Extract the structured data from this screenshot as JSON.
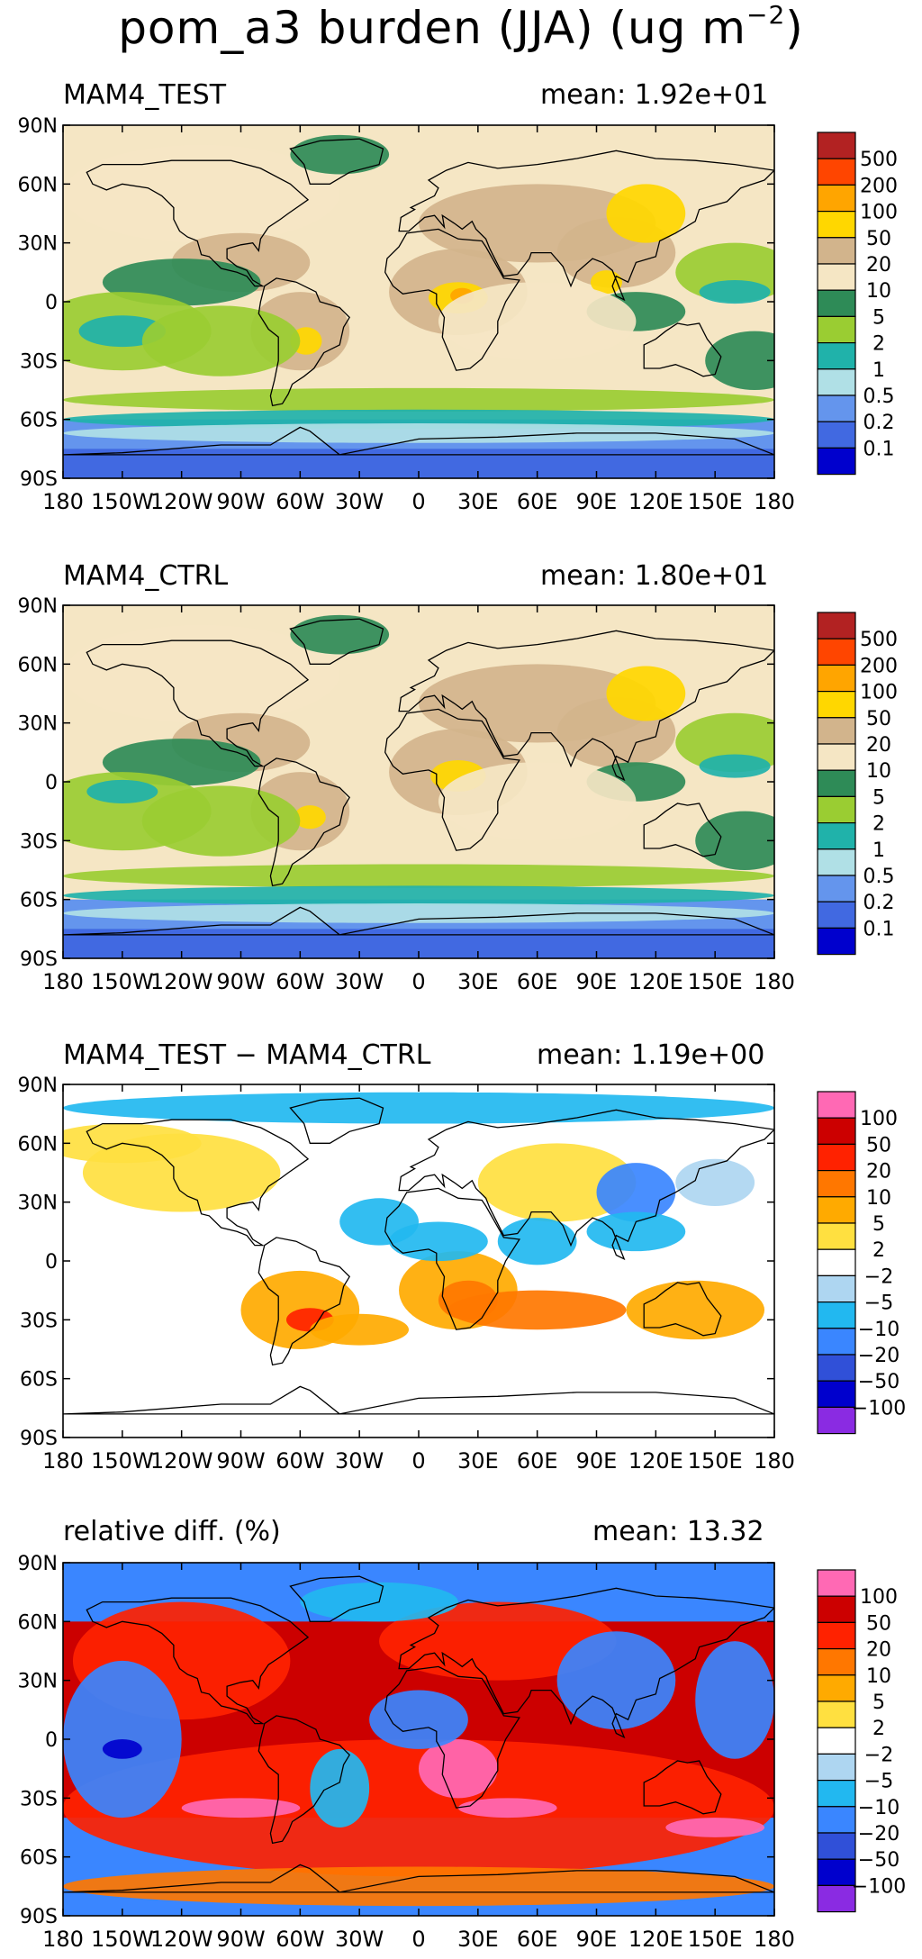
{
  "figure": {
    "title_main": "pom_a3 burden (JJA) (ug m",
    "title_exp": "−2",
    "title_close": ")"
  },
  "chart_data": [
    {
      "type": "heatmap",
      "title": "MAM4_TEST",
      "mean_label": "mean: 1.92e+01",
      "mean": 19.2,
      "x_ticks": [
        "180",
        "150W",
        "120W",
        "90W",
        "60W",
        "30W",
        "0",
        "30E",
        "60E",
        "90E",
        "120E",
        "150E",
        "180"
      ],
      "y_ticks": [
        "90N",
        "60N",
        "30N",
        "0",
        "30S",
        "60S",
        "90S"
      ],
      "xlim": [
        -180,
        180
      ],
      "ylim": [
        -90,
        90
      ],
      "colorbar": {
        "labels": [
          "500",
          "200",
          "100",
          "50",
          "20",
          "10",
          "5",
          "2",
          "1",
          "0.5",
          "0.2",
          "0.1"
        ],
        "colors": [
          "#b22222",
          "#ff4500",
          "#ffa500",
          "#ffd700",
          "#d2b48c",
          "#f5e6c4",
          "#2e8b57",
          "#9acd32",
          "#20b2aa",
          "#b0e0e6",
          "#6495ed",
          "#4169e1",
          "#0000cd"
        ]
      }
    },
    {
      "type": "heatmap",
      "title": "MAM4_CTRL",
      "mean_label": "mean: 1.80e+01",
      "mean": 18.0,
      "x_ticks": [
        "180",
        "150W",
        "120W",
        "90W",
        "60W",
        "30W",
        "0",
        "30E",
        "60E",
        "90E",
        "120E",
        "150E",
        "180"
      ],
      "y_ticks": [
        "90N",
        "60N",
        "30N",
        "0",
        "30S",
        "60S",
        "90S"
      ],
      "xlim": [
        -180,
        180
      ],
      "ylim": [
        -90,
        90
      ],
      "colorbar": {
        "labels": [
          "500",
          "200",
          "100",
          "50",
          "20",
          "10",
          "5",
          "2",
          "1",
          "0.5",
          "0.2",
          "0.1"
        ],
        "colors": [
          "#b22222",
          "#ff4500",
          "#ffa500",
          "#ffd700",
          "#d2b48c",
          "#f5e6c4",
          "#2e8b57",
          "#9acd32",
          "#20b2aa",
          "#b0e0e6",
          "#6495ed",
          "#4169e1",
          "#0000cd"
        ]
      }
    },
    {
      "type": "heatmap",
      "title": "MAM4_TEST − MAM4_CTRL",
      "mean_label": "mean: 1.19e+00",
      "mean": 1.19,
      "x_ticks": [
        "180",
        "150W",
        "120W",
        "90W",
        "60W",
        "30W",
        "0",
        "30E",
        "60E",
        "90E",
        "120E",
        "150E",
        "180"
      ],
      "y_ticks": [
        "90N",
        "60N",
        "30N",
        "0",
        "30S",
        "60S",
        "90S"
      ],
      "xlim": [
        -180,
        180
      ],
      "ylim": [
        -90,
        90
      ],
      "colorbar": {
        "labels": [
          "100",
          "50",
          "20",
          "10",
          "5",
          "2",
          "−2",
          "−5",
          "−10",
          "−20",
          "−50",
          "−100"
        ],
        "colors": [
          "#ff69b4",
          "#cc0000",
          "#ff2200",
          "#ff7700",
          "#ffaa00",
          "#ffe040",
          "#ffffff",
          "#aed6f1",
          "#22b8f0",
          "#3a86ff",
          "#3050d8",
          "#0000cd",
          "#8a2be2"
        ]
      }
    },
    {
      "type": "heatmap",
      "title": "relative diff. (%)",
      "mean_label": "mean: 13.32",
      "mean": 13.32,
      "x_ticks": [
        "180",
        "150W",
        "120W",
        "90W",
        "60W",
        "30W",
        "0",
        "30E",
        "60E",
        "90E",
        "120E",
        "150E",
        "180"
      ],
      "y_ticks": [
        "90N",
        "60N",
        "30N",
        "0",
        "30S",
        "60S",
        "90S"
      ],
      "xlim": [
        -180,
        180
      ],
      "ylim": [
        -90,
        90
      ],
      "colorbar": {
        "labels": [
          "100",
          "50",
          "20",
          "10",
          "5",
          "2",
          "−2",
          "−5",
          "−10",
          "−20",
          "−50",
          "−100"
        ],
        "colors": [
          "#ff69b4",
          "#cc0000",
          "#ff2200",
          "#ff7700",
          "#ffaa00",
          "#ffe040",
          "#ffffff",
          "#aed6f1",
          "#22b8f0",
          "#3a86ff",
          "#3050d8",
          "#0000cd",
          "#8a2be2"
        ]
      }
    }
  ],
  "colors": {
    "land_outline": "#000000",
    "axis": "#000000"
  }
}
